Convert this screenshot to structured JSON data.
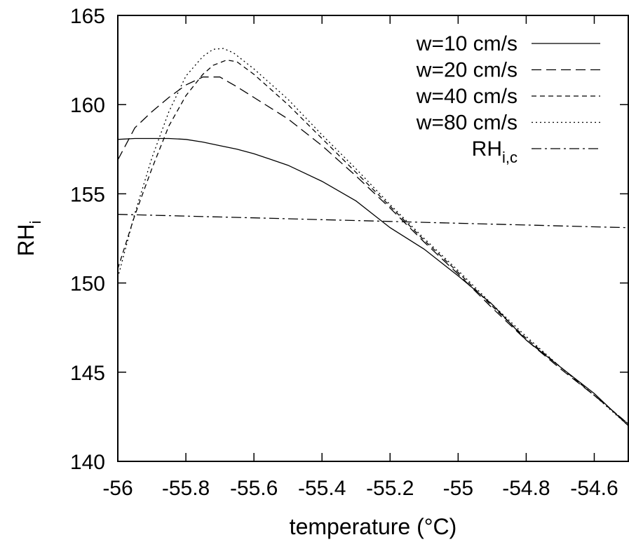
{
  "chart_data": {
    "type": "line",
    "title": "",
    "xlabel": "temperature (°C)",
    "ylabel": {
      "base": "RH",
      "sub": "i"
    },
    "xlim": [
      -56,
      -54.5
    ],
    "ylim": [
      140,
      165
    ],
    "xticks": [
      "-56",
      "-55.8",
      "-55.6",
      "-55.4",
      "-55.2",
      "-55",
      "-54.8",
      "-54.6"
    ],
    "yticks": [
      "140",
      "145",
      "150",
      "155",
      "160",
      "165"
    ],
    "grid": false,
    "legend_position": "top-right",
    "series": [
      {
        "name": {
          "base": "w=10 cm/s",
          "sub": ""
        },
        "dash": "",
        "x": [
          -56,
          -55.95,
          -55.9,
          -55.85,
          -55.8,
          -55.75,
          -55.7,
          -55.65,
          -55.6,
          -55.5,
          -55.4,
          -55.3,
          -55.2,
          -55.1,
          -55.0,
          -54.9,
          -54.8,
          -54.7,
          -54.6,
          -54.5
        ],
        "y": [
          158.05,
          158.1,
          158.1,
          158.1,
          158.05,
          157.9,
          157.7,
          157.5,
          157.25,
          156.6,
          155.7,
          154.6,
          153.1,
          151.9,
          150.4,
          148.8,
          146.8,
          145.3,
          143.8,
          142.0
        ]
      },
      {
        "name": {
          "base": "w=20 cm/s",
          "sub": ""
        },
        "dash": "14,7",
        "x": [
          -56,
          -55.95,
          -55.9,
          -55.85,
          -55.8,
          -55.75,
          -55.7,
          -55.65,
          -55.6,
          -55.5,
          -55.4,
          -55.3,
          -55.2,
          -55.1,
          -55.0,
          -54.9,
          -54.8,
          -54.7,
          -54.6,
          -54.5
        ],
        "y": [
          156.9,
          158.7,
          159.6,
          160.4,
          161.1,
          161.55,
          161.55,
          161.0,
          160.4,
          159.2,
          157.7,
          156.0,
          154.2,
          152.3,
          150.5,
          148.6,
          146.8,
          145.2,
          143.7,
          142.1
        ]
      },
      {
        "name": {
          "base": "w=40 cm/s",
          "sub": ""
        },
        "dash": "7,5",
        "x": [
          -56,
          -55.95,
          -55.9,
          -55.85,
          -55.8,
          -55.75,
          -55.72,
          -55.68,
          -55.65,
          -55.6,
          -55.5,
          -55.4,
          -55.3,
          -55.2,
          -55.1,
          -55.0,
          -54.9,
          -54.8,
          -54.7,
          -54.6,
          -54.5
        ],
        "y": [
          150.8,
          153.8,
          156.4,
          158.8,
          160.5,
          161.7,
          162.2,
          162.5,
          162.4,
          161.7,
          160.0,
          158.1,
          156.2,
          154.3,
          152.4,
          150.6,
          148.7,
          146.9,
          145.3,
          143.7,
          142.1
        ]
      },
      {
        "name": {
          "base": "w=80 cm/s",
          "sub": ""
        },
        "dash": "2,4",
        "x": [
          -56,
          -55.95,
          -55.9,
          -55.85,
          -55.8,
          -55.75,
          -55.72,
          -55.69,
          -55.66,
          -55.6,
          -55.5,
          -55.4,
          -55.3,
          -55.2,
          -55.1,
          -55.0,
          -54.9,
          -54.8,
          -54.7,
          -54.6,
          -54.5
        ],
        "y": [
          150.3,
          153.9,
          157.0,
          159.6,
          161.6,
          162.7,
          163.1,
          163.15,
          162.9,
          162.0,
          160.3,
          158.3,
          156.4,
          154.4,
          152.5,
          150.7,
          148.8,
          147.0,
          145.3,
          143.7,
          142.0
        ]
      },
      {
        "name": {
          "base": "RH",
          "sub": "i,c"
        },
        "dash": "14,5,3,5",
        "x": [
          -56,
          -55.8,
          -55.6,
          -55.4,
          -55.2,
          -55.0,
          -54.8,
          -54.6,
          -54.5
        ],
        "y": [
          153.85,
          153.75,
          153.65,
          153.55,
          153.45,
          153.35,
          153.25,
          153.15,
          153.1
        ]
      }
    ]
  }
}
